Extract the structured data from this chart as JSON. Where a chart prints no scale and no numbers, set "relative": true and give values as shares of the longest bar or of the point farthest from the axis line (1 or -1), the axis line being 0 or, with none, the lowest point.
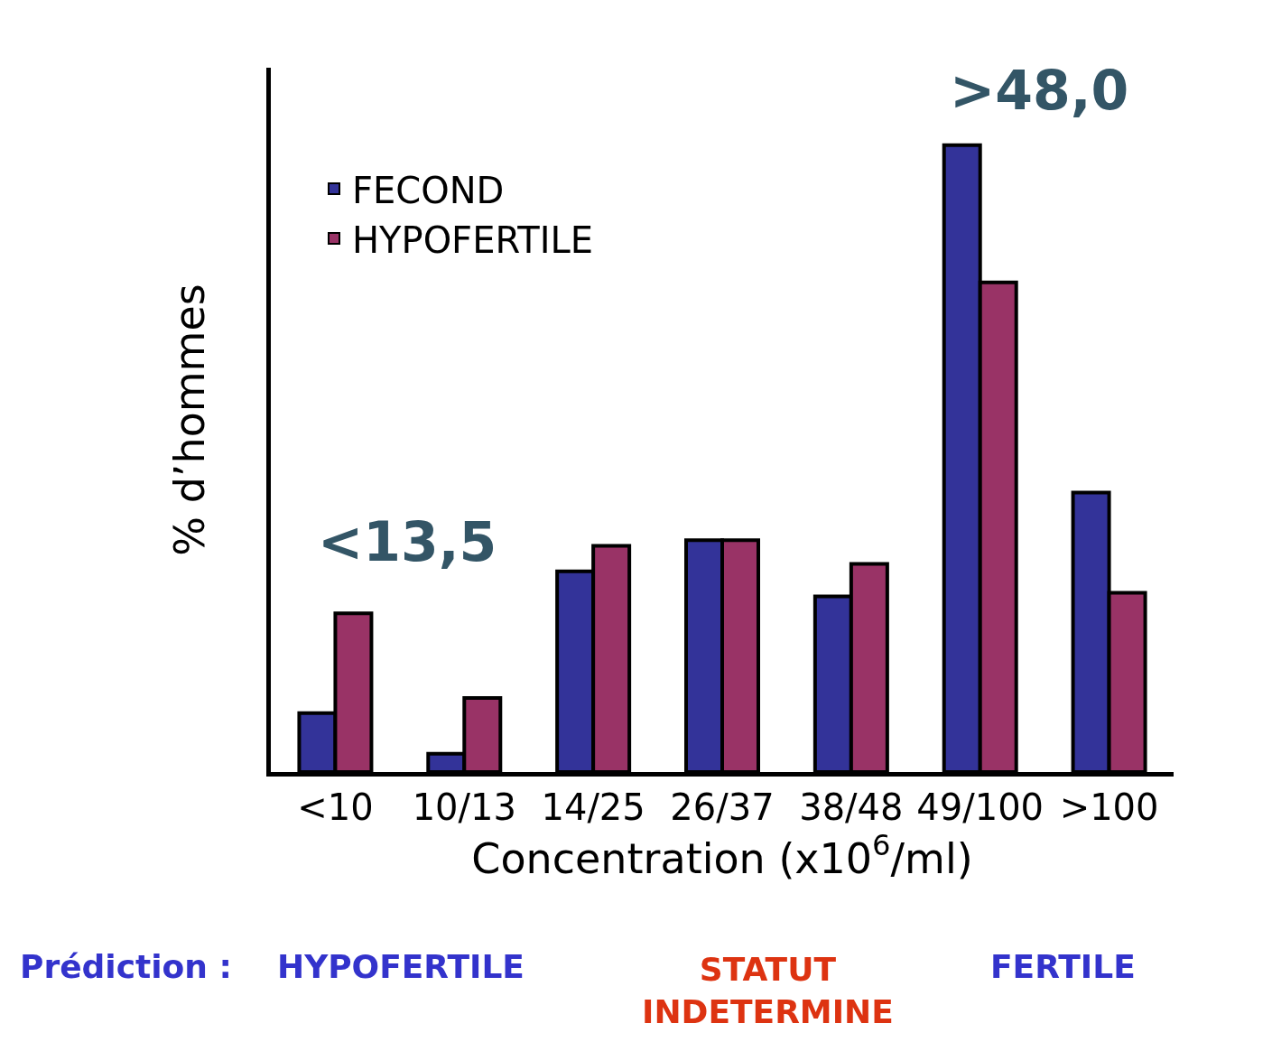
{
  "chart_data": {
    "type": "bar",
    "relative": true,
    "xlabel": "Concentration (x10$^{6}$/ml)",
    "ylabel": "% d’hommes",
    "categories": [
      "<10",
      "10/13",
      "14/25",
      "26/37",
      "38/48",
      "49/100",
      ">100"
    ],
    "series": [
      {
        "name": "FECOND",
        "color": "#333399",
        "values": [
          0.094,
          0.029,
          0.32,
          0.37,
          0.28,
          1,
          0.446
        ]
      },
      {
        "name": "HYPOFERTILE",
        "color": "#993366",
        "values": [
          0.253,
          0.118,
          0.361,
          0.37,
          0.332,
          0.781,
          0.286
        ]
      }
    ],
    "legend": "top left",
    "annotations": [
      ">48,0",
      "<13,5",
      "Prédiction :",
      "HYPOFERTILE",
      "STATUT\nINDETERMINE",
      "FERTILE"
    ]
  }
}
